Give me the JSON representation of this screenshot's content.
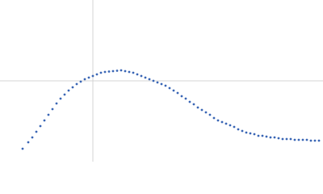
{
  "chart_data": {
    "type": "scatter",
    "x": [
      28,
      35,
      40,
      45,
      50,
      55,
      60,
      65,
      70,
      75,
      80,
      85,
      90,
      95,
      100,
      105,
      110,
      115,
      120,
      125,
      130,
      135,
      140,
      145,
      150,
      155,
      160,
      165,
      170,
      175,
      180,
      185,
      190,
      195,
      200,
      205,
      210,
      215,
      220,
      225,
      230,
      235,
      240,
      245,
      250,
      255,
      260,
      265,
      270,
      275,
      280,
      285,
      290,
      295,
      300,
      305,
      310,
      315,
      320,
      325,
      330,
      335,
      340,
      345,
      350,
      355,
      360,
      365,
      370,
      375,
      380,
      385,
      390,
      395
    ],
    "values": [
      16,
      24,
      30,
      37,
      44,
      51,
      58,
      65,
      72,
      78,
      83,
      88,
      92,
      96,
      99,
      102,
      104,
      106,
      108,
      110,
      111,
      111.5,
      112,
      112.5,
      113,
      112,
      111,
      110,
      108,
      106,
      104,
      102,
      100,
      98,
      96,
      94,
      91,
      88,
      85,
      81,
      78,
      74,
      71,
      67,
      64,
      61,
      58,
      54,
      51,
      49,
      47,
      45,
      43,
      40,
      38,
      36,
      35,
      34,
      32,
      32,
      31,
      30,
      30,
      29,
      28,
      28,
      28,
      27,
      27,
      27,
      27,
      26,
      26,
      26
    ],
    "color": "#3a66b5",
    "xlim": [
      0,
      400
    ],
    "ylim": [
      0,
      200
    ]
  }
}
